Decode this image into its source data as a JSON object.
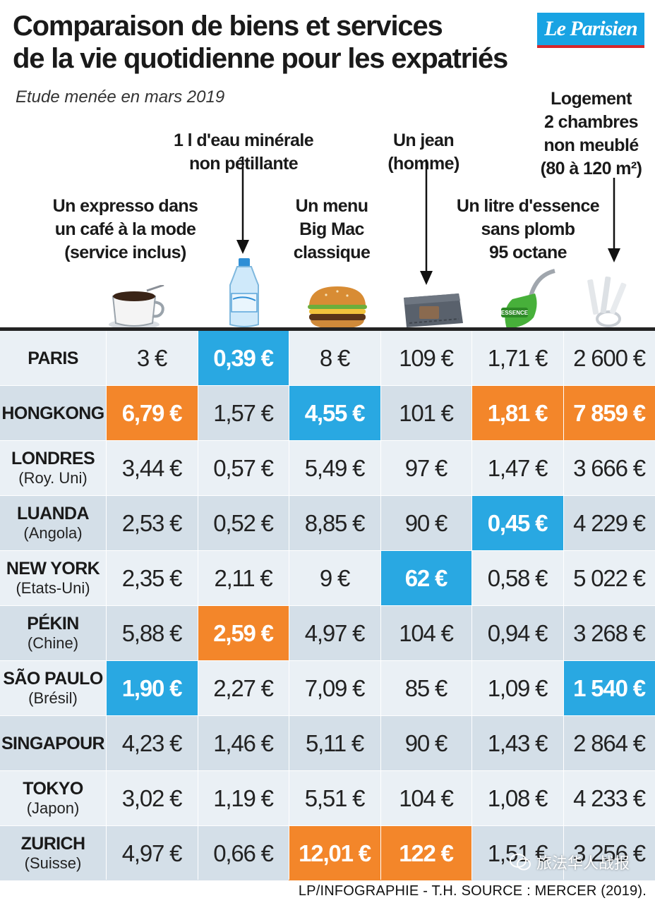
{
  "title": "Comparaison de biens et services\nde la vie quotidienne pour les expatriés",
  "subtitle": "Etude menée en mars 2019",
  "logo": "Le Parisien",
  "credit": "LP/INFOGRAPHIE - T.H.  SOURCE : MERCER (2019).",
  "watermark": "旅法华人战报",
  "colors": {
    "highlight_low": "#29a8e2",
    "highlight_high": "#f3862a",
    "row_light": "#eaf0f5",
    "row_dark": "#d4dfe8",
    "logo_blue": "#18a3e3"
  },
  "chart_data": {
    "type": "table",
    "title": "Comparaison de biens et services de la vie quotidienne pour les expatriés",
    "columns": [
      {
        "id": "expresso",
        "label": "Un expresso dans\nun café à la mode\n(service inclus)",
        "icon": "coffee-cup-icon"
      },
      {
        "id": "eau",
        "label": "1 l d'eau minérale\nnon pétillante",
        "icon": "water-bottle-icon"
      },
      {
        "id": "bigmac",
        "label": "Un menu\nBig Mac\nclassique",
        "icon": "burger-icon"
      },
      {
        "id": "jean",
        "label": "Un jean\n(homme)",
        "icon": "jeans-icon"
      },
      {
        "id": "essence",
        "label": "Un litre d'essence\nsans plomb\n95 octane",
        "icon": "fuel-nozzle-icon"
      },
      {
        "id": "logement",
        "label": "Logement\n2 chambres\nnon meublé\n(80 à 120 m²)",
        "icon": "keys-icon"
      }
    ],
    "rows": [
      {
        "city": "PARIS",
        "country": "",
        "values": [
          "3 €",
          "0,39 €",
          "8 €",
          "109 €",
          "1,71 €",
          "2 600 €"
        ],
        "highlight": [
          "",
          "low",
          "",
          "",
          "",
          ""
        ]
      },
      {
        "city": "HONGKONG",
        "country": "",
        "values": [
          "6,79 €",
          "1,57 €",
          "4,55 €",
          "101 €",
          "1,81 €",
          "7 859 €"
        ],
        "highlight": [
          "high",
          "",
          "low",
          "",
          "high",
          "high"
        ]
      },
      {
        "city": "LONDRES",
        "country": "(Roy. Uni)",
        "values": [
          "3,44 €",
          "0,57 €",
          "5,49 €",
          "97 €",
          "1,47 €",
          "3 666 €"
        ],
        "highlight": [
          "",
          "",
          "",
          "",
          "",
          ""
        ]
      },
      {
        "city": "LUANDA",
        "country": "(Angola)",
        "values": [
          "2,53 €",
          "0,52 €",
          "8,85 €",
          "90 €",
          "0,45 €",
          "4 229 €"
        ],
        "highlight": [
          "",
          "",
          "",
          "",
          "low",
          ""
        ]
      },
      {
        "city": "NEW YORK",
        "country": "(Etats-Uni)",
        "values": [
          "2,35 €",
          "2,11 €",
          "9 €",
          "62 €",
          "0,58 €",
          "5 022 €"
        ],
        "highlight": [
          "",
          "",
          "",
          "low",
          "",
          ""
        ]
      },
      {
        "city": "PÉKIN",
        "country": "(Chine)",
        "values": [
          "5,88 €",
          "2,59 €",
          "4,97 €",
          "104 €",
          "0,94 €",
          "3 268 €"
        ],
        "highlight": [
          "",
          "high",
          "",
          "",
          "",
          ""
        ]
      },
      {
        "city": "SÃO PAULO",
        "country": "(Brésil)",
        "values": [
          "1,90 €",
          "2,27 €",
          "7,09 €",
          "85 €",
          "1,09 €",
          "1 540 €"
        ],
        "highlight": [
          "low",
          "",
          "",
          "",
          "",
          "low"
        ]
      },
      {
        "city": "SINGAPOUR",
        "country": "",
        "values": [
          "4,23 €",
          "1,46 €",
          "5,11 €",
          "90 €",
          "1,43 €",
          "2 864 €"
        ],
        "highlight": [
          "",
          "",
          "",
          "",
          "",
          ""
        ]
      },
      {
        "city": "TOKYO",
        "country": "(Japon)",
        "values": [
          "3,02 €",
          "1,19 €",
          "5,51 €",
          "104 €",
          "1,08 €",
          "4 233 €"
        ],
        "highlight": [
          "",
          "",
          "",
          "",
          "",
          ""
        ]
      },
      {
        "city": "ZURICH",
        "country": "(Suisse)",
        "values": [
          "4,97 €",
          "0,66 €",
          "12,01 €",
          "122 €",
          "1,51 €",
          "3 256 €"
        ],
        "highlight": [
          "",
          "",
          "high",
          "high",
          "",
          ""
        ]
      }
    ]
  }
}
